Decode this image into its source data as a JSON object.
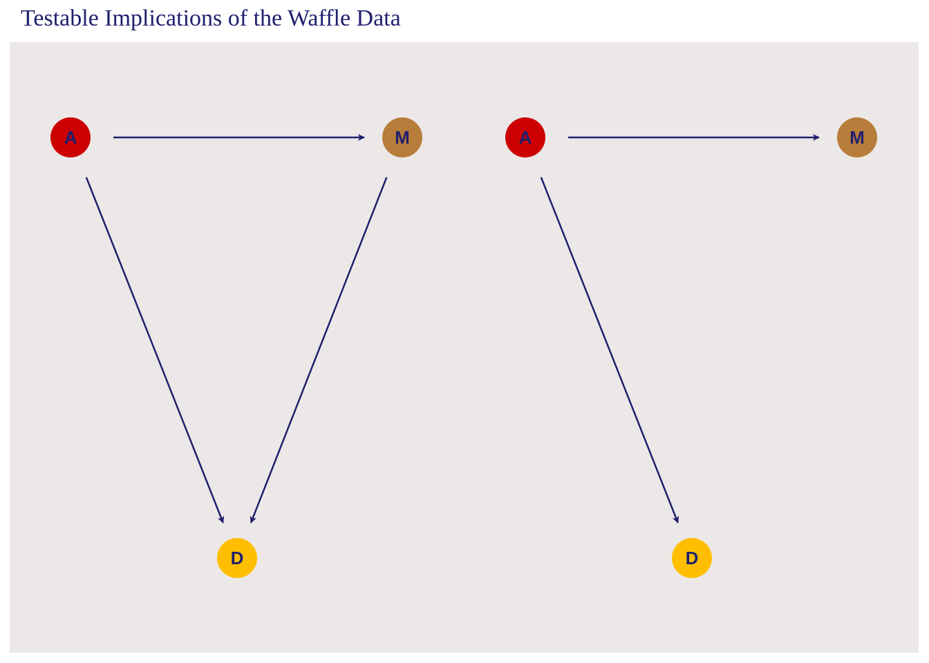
{
  "title": "Testable Implications of the Waffle Data",
  "colors": {
    "panel_background": "#ece8e8",
    "edge": "#1f1f6e",
    "label": "#1f1f6e",
    "node_A": "#cc0000",
    "node_M": "#b87d3a",
    "node_D": "#ffbf00"
  },
  "diagrams": [
    {
      "nodes": [
        {
          "id": "A",
          "label": "A"
        },
        {
          "id": "M",
          "label": "M"
        },
        {
          "id": "D",
          "label": "D"
        }
      ],
      "edges": [
        {
          "from": "A",
          "to": "M"
        },
        {
          "from": "A",
          "to": "D"
        },
        {
          "from": "M",
          "to": "D"
        }
      ]
    },
    {
      "nodes": [
        {
          "id": "A",
          "label": "A"
        },
        {
          "id": "M",
          "label": "M"
        },
        {
          "id": "D",
          "label": "D"
        }
      ],
      "edges": [
        {
          "from": "A",
          "to": "M"
        },
        {
          "from": "A",
          "to": "D"
        }
      ]
    }
  ]
}
